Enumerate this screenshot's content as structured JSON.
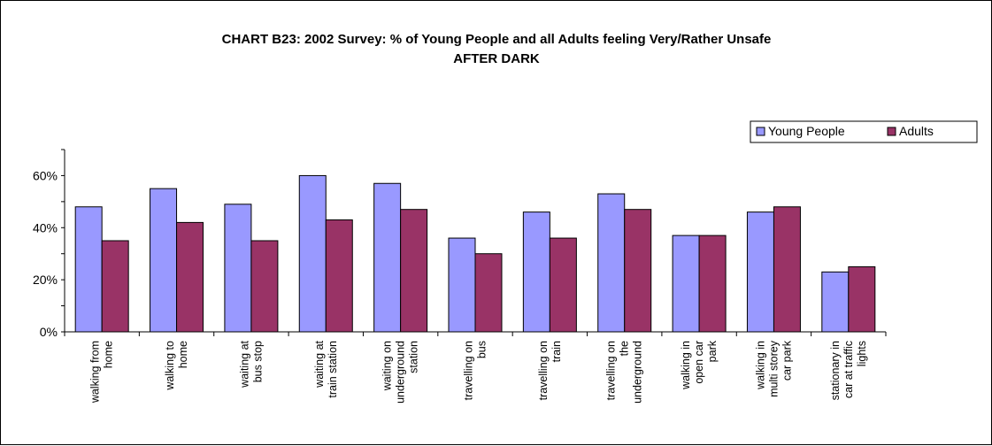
{
  "chart_data": {
    "type": "bar",
    "title": "CHART B23: 2002 Survey: % of Young People and all Adults feeling Very/Rather Unsafe",
    "subtitle": "AFTER DARK",
    "categories": [
      [
        "walking from",
        "home"
      ],
      [
        "walking to",
        "home"
      ],
      [
        "waiting at",
        "bus stop"
      ],
      [
        "waiting at",
        "train station"
      ],
      [
        "waiting on",
        "underground",
        "station"
      ],
      [
        "travelling on",
        "bus"
      ],
      [
        "travelling on",
        "train"
      ],
      [
        "travelling on",
        "the",
        "underground"
      ],
      [
        "walking in",
        "open car",
        "park"
      ],
      [
        "walking in",
        "multi storey",
        "car park"
      ],
      [
        "stationary in",
        "car at traffic",
        "lights"
      ]
    ],
    "series": [
      {
        "name": "Young People",
        "color": "#9999ff",
        "values": [
          48,
          55,
          49,
          60,
          57,
          36,
          46,
          53,
          37,
          46,
          23
        ]
      },
      {
        "name": "Adults",
        "color": "#993366",
        "values": [
          35,
          42,
          35,
          43,
          47,
          30,
          36,
          47,
          37,
          48,
          25
        ]
      }
    ],
    "yticks": [
      "0%",
      "20%",
      "40%",
      "60%"
    ],
    "ylim": [
      0,
      70
    ],
    "legend_position": "top-right",
    "grid": false
  }
}
